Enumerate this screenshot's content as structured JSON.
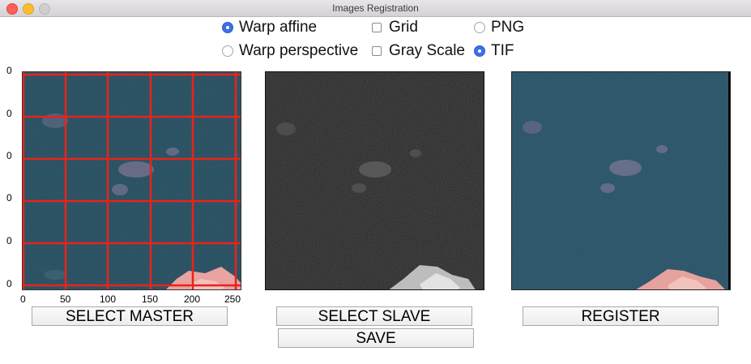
{
  "window": {
    "title": "Images Registration"
  },
  "options": {
    "warp_affine": {
      "label": "Warp affine",
      "selected": true
    },
    "warp_perspective": {
      "label": "Warp perspective",
      "selected": false
    },
    "grid": {
      "label": "Grid",
      "checked": false
    },
    "gray_scale": {
      "label": "Gray Scale",
      "checked": false
    },
    "png": {
      "label": "PNG",
      "selected": false
    },
    "tif": {
      "label": "TIF",
      "selected": true
    }
  },
  "master_plot": {
    "y_ticks": [
      "0",
      "0",
      "0",
      "0",
      "0",
      "0"
    ],
    "x_ticks": [
      "0",
      "50",
      "100",
      "150",
      "200",
      "250"
    ],
    "grid_color": "#e8231b"
  },
  "buttons": {
    "select_master": "SELECT MASTER",
    "select_slave": "SELECT SLAVE",
    "save": "SAVE",
    "register": "REGISTER"
  }
}
